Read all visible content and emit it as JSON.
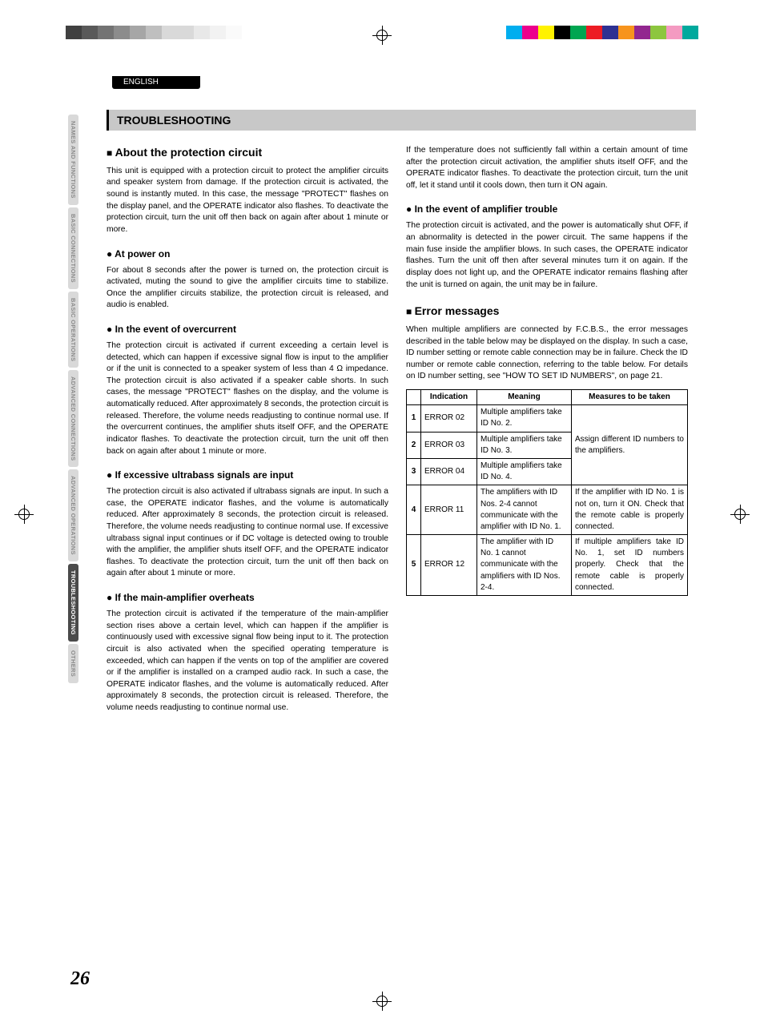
{
  "print_marks": {
    "grays": [
      "#404040",
      "#595959",
      "#737373",
      "#8c8c8c",
      "#a6a6a6",
      "#bfbfbf",
      "#d9d9d9",
      "#d9d9d9",
      "#e8e8e8",
      "#f2f2f2",
      "#fafafa"
    ],
    "colors": [
      "#00aeef",
      "#ec008c",
      "#fff200",
      "#000000",
      "#00a651",
      "#ed1c24",
      "#2e3192",
      "#f7941d",
      "#92278f",
      "#8dc63f",
      "#f49ac1",
      "#00a99d"
    ]
  },
  "header": {
    "english": "ENGLISH"
  },
  "tabs": {
    "items": [
      {
        "label": "NAMES AND FUNCTIONS",
        "style": "light"
      },
      {
        "label": "BASIC CONNECTIONS",
        "style": "light"
      },
      {
        "label": "BASIC OPERATIONS",
        "style": "light"
      },
      {
        "label": "ADVANCED CONNECTIONS",
        "style": "light"
      },
      {
        "label": "ADVANCED OPERATIONS",
        "style": "light"
      },
      {
        "label": "TROUBLESHOOTING",
        "style": "dark"
      },
      {
        "label": "OTHERS",
        "style": "light"
      }
    ]
  },
  "title": "TROUBLESHOOTING",
  "left": {
    "h_about": "About the protection circuit",
    "p_about": "This unit is equipped with a protection circuit to protect the amplifier circuits and speaker system from damage.\nIf the protection circuit is activated, the sound is instantly muted. In this case, the message \"PROTECT\" flashes on the display panel, and the OPERATE indicator also flashes.\nTo deactivate the protection circuit, turn the unit off then back on again after about 1 minute or more.",
    "h_power": "At power on",
    "p_power": "For about 8 seconds after the power is turned on, the protection circuit is activated, muting the sound to give the amplifier circuits time to stabilize. Once the amplifier circuits stabilize, the protection circuit is released, and audio is enabled.",
    "h_over": "In the event of overcurrent",
    "p_over": "The protection circuit is activated if current exceeding a certain level is detected, which can happen if excessive signal flow is input to the amplifier or if the unit is connected to a speaker system of less than 4 Ω impedance. The protection circuit is also activated if a speaker cable shorts.\nIn such cases, the message \"PROTECT\" flashes on the display, and the volume is automatically reduced. After approximately 8 seconds, the protection circuit is released. Therefore, the volume needs readjusting to continue normal use.\nIf the overcurrent continues, the amplifier shuts itself OFF, and the OPERATE indicator flashes.\nTo deactivate the protection circuit, turn the unit off then back on again after about 1 minute or more.",
    "h_ultra": "If excessive ultrabass signals are input",
    "p_ultra": "The protection circuit is also activated if ultrabass signals are input. In such a case, the OPERATE indicator flashes, and the volume is automatically reduced. After approximately 8 seconds, the protection circuit is released. Therefore, the volume needs readjusting to continue normal use. If excessive ultrabass signal input continues or if DC voltage is detected owing to trouble with the amplifier, the amplifier shuts itself OFF, and the OPERATE indicator flashes.\nTo deactivate the protection circuit, turn the unit off then back on again after about 1 minute or more.",
    "h_heat": "If the main-amplifier overheats",
    "p_heat": "The protection circuit is activated if the temperature of the main-amplifier section rises above a certain level, which can happen if the amplifier is continuously used with excessive signal flow being input to it. The protection circuit is also activated when the specified operating temperature is exceeded, which can happen if the vents on top of the amplifier are covered or if the amplifier is installed on a cramped audio rack. In such a case, the OPERATE indicator flashes, and the volume is automatically reduced. After approximately 8 seconds, the protection circuit is released. Therefore, the volume needs readjusting to continue normal use."
  },
  "right": {
    "p_heat2": "If the temperature does not sufficiently fall within a certain amount of time after the protection circuit activation, the amplifier shuts itself OFF, and the OPERATE indicator flashes.\nTo deactivate the protection circuit, turn the unit off, let it stand until it cools down, then turn it ON again.",
    "h_amp": "In the event of amplifier trouble",
    "p_amp": "The protection circuit is activated, and the power is automatically shut OFF, if an abnormality is detected in the power circuit. The same happens if the main fuse inside the amplifier blows. In such cases, the OPERATE indicator flashes.\nTurn the unit off then after several minutes turn it on again. If the display does not light up, and the OPERATE indicator remains flashing after the unit is turned on again, the unit may be in failure.",
    "h_err": "Error messages",
    "p_err": "When multiple amplifiers are connected by F.C.B.S., the error messages described in the table below may be displayed on the display. In such a case, ID number setting or remote cable connection may be in failure. Check the ID number or remote cable connection, referring to the table below. For details on ID number setting, see \"HOW TO SET ID NUMBERS\", on page 21.",
    "table": {
      "headers": [
        "",
        "Indication",
        "Meaning",
        "Measures to be taken"
      ],
      "rows": [
        {
          "n": "1",
          "ind": "ERROR 02",
          "mean": "Multiple amplifiers take ID No. 2.",
          "meas": "Assign different ID numbers to the amplifiers.",
          "span": 3
        },
        {
          "n": "2",
          "ind": "ERROR 03",
          "mean": "Multiple amplifiers take ID No. 3."
        },
        {
          "n": "3",
          "ind": "ERROR 04",
          "mean": "Multiple amplifiers take ID No. 4."
        },
        {
          "n": "4",
          "ind": "ERROR 11",
          "mean": "The amplifiers with ID Nos. 2-4 cannot communicate with the amplifier with ID No. 1.",
          "meas": "If the amplifier with ID No. 1 is not on, turn it ON.\nCheck that the remote cable is properly connected."
        },
        {
          "n": "5",
          "ind": "ERROR 12",
          "mean": "The amplifier with ID No. 1 cannot communicate with the amplifiers with ID Nos. 2-4.",
          "meas": "If multiple amplifiers take ID No. 1, set ID numbers properly.\nCheck that the remote cable is properly connected."
        }
      ]
    }
  },
  "page_number": "26"
}
